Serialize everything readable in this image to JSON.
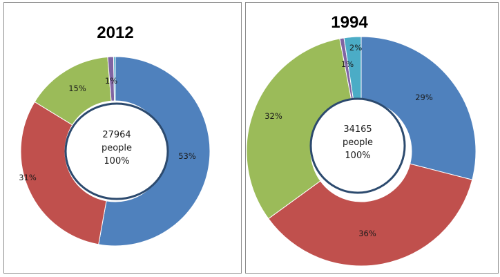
{
  "chart_data": [
    {
      "type": "pie",
      "title": "2012",
      "center_lines": [
        "27964",
        "people",
        "100%"
      ],
      "colors": [
        "#4f81bd",
        "#c0504d",
        "#9bbb59",
        "#8064a2",
        "#4bacc6"
      ],
      "values": [
        53,
        31,
        15,
        1,
        0.3
      ],
      "labels": [
        "53%",
        "31%",
        "15%",
        "1%",
        ""
      ]
    },
    {
      "type": "pie",
      "title": "1994",
      "center_lines": [
        "34165",
        "people",
        "100%"
      ],
      "colors": [
        "#4f81bd",
        "#c0504d",
        "#9bbb59",
        "#8064a2",
        "#4bacc6"
      ],
      "values": [
        29,
        36,
        32,
        0.6,
        2.4
      ],
      "labels": [
        "29%",
        "36%",
        "32%",
        "1%",
        "2%"
      ]
    }
  ]
}
